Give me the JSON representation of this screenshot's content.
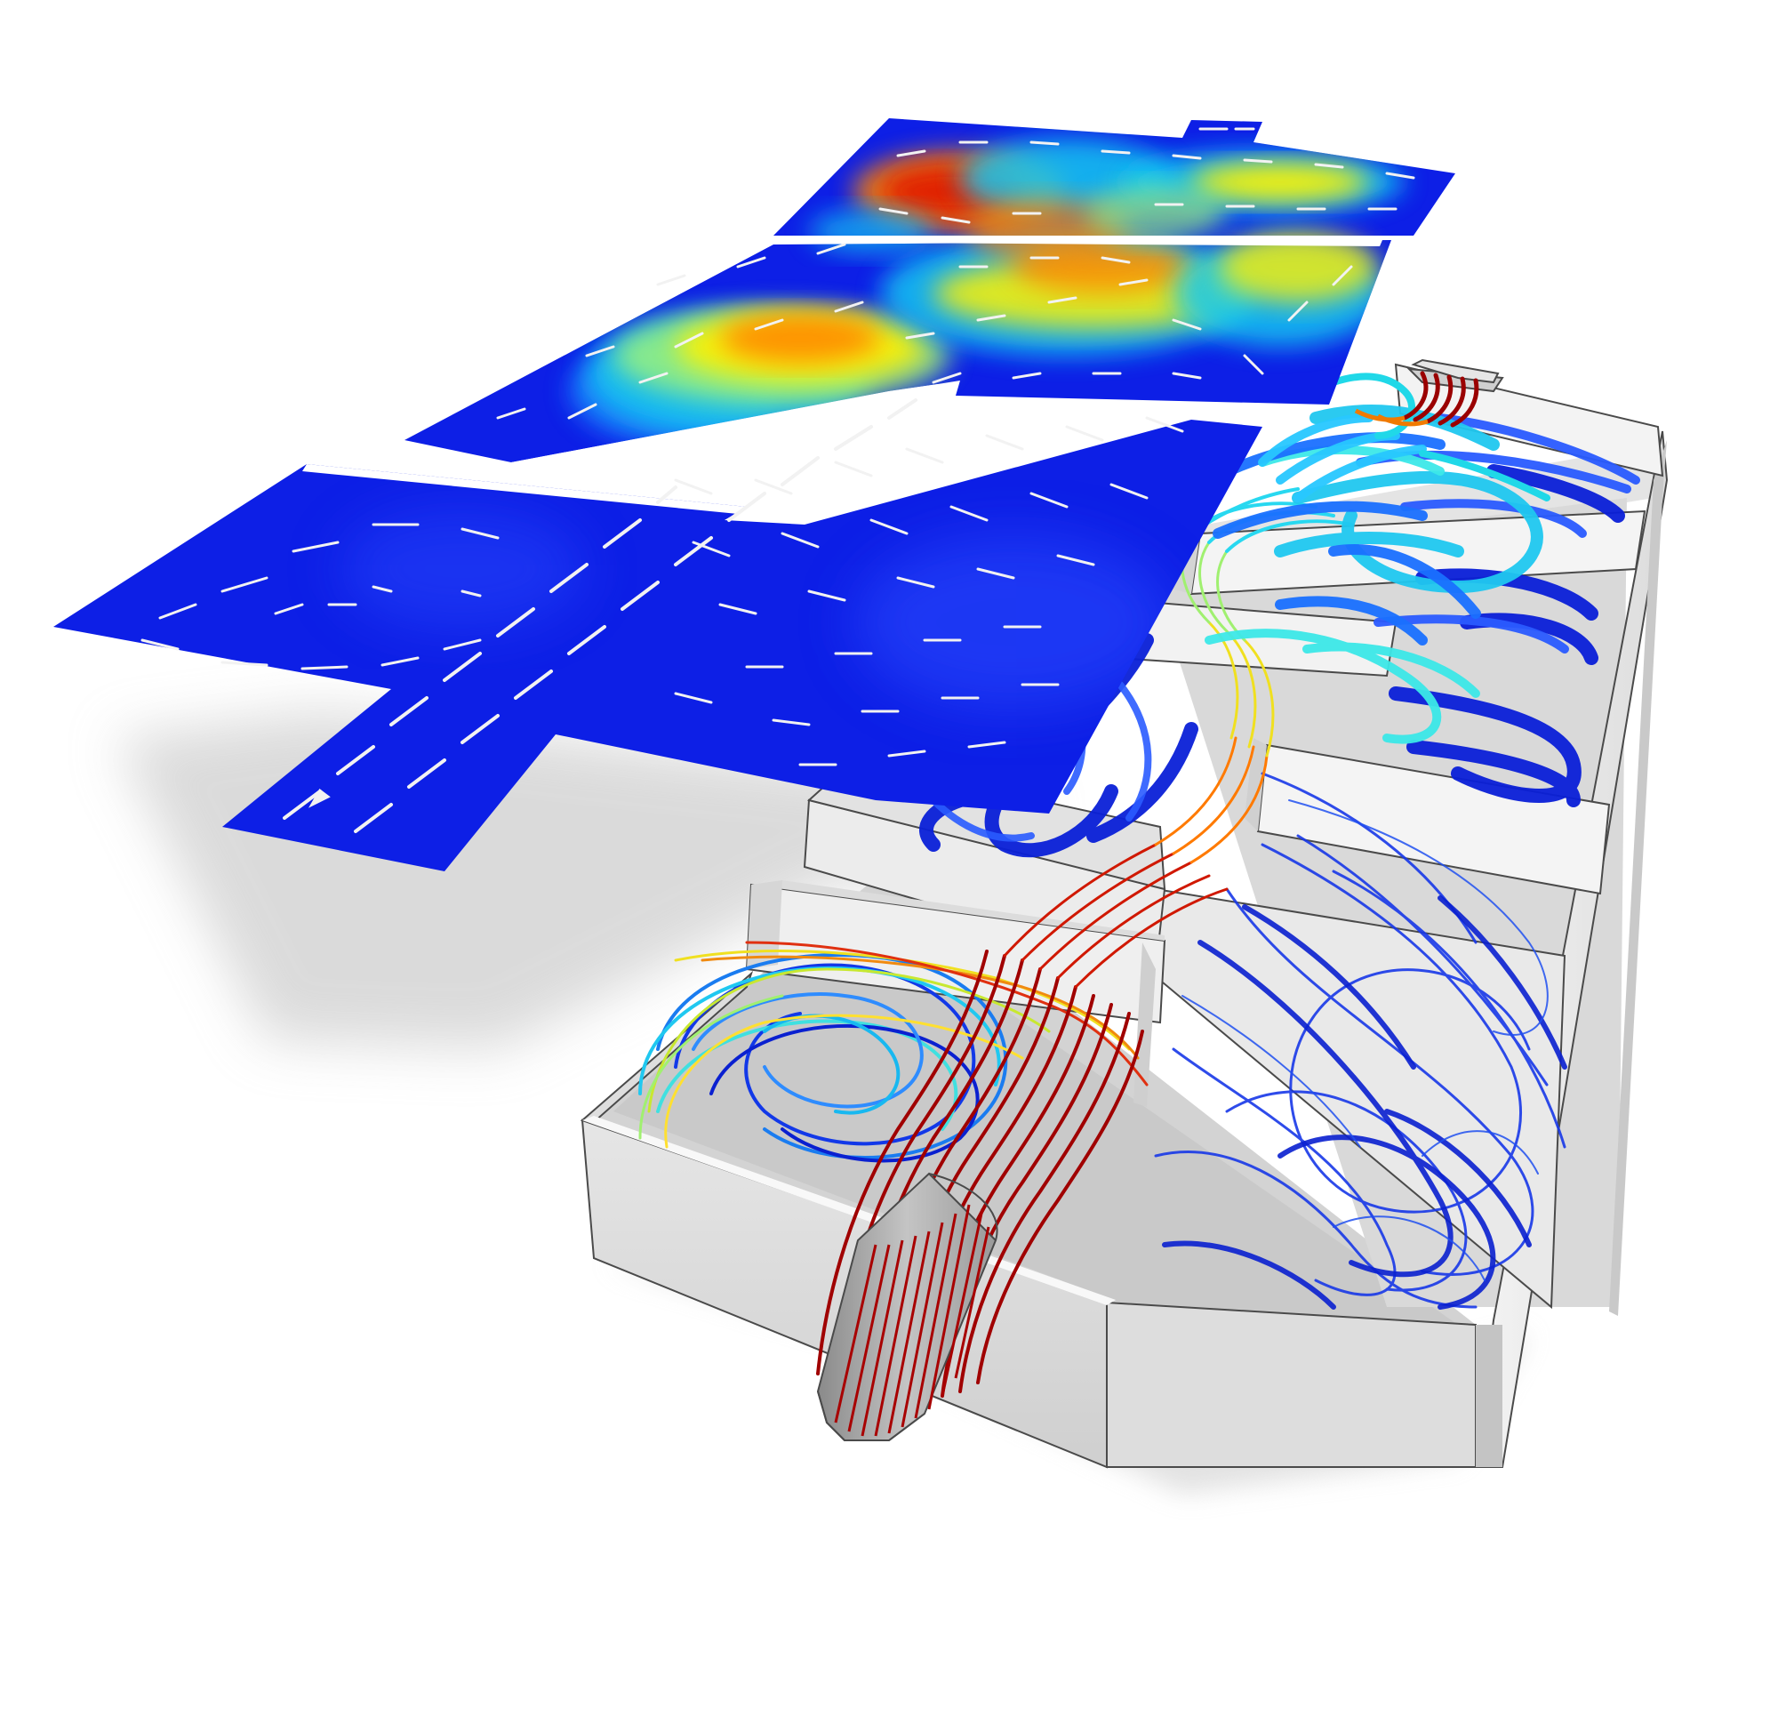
{
  "scene": {
    "background": "#ffffff",
    "colormap": [
      "#0a10c8",
      "#1e5cff",
      "#18c8f0",
      "#9cf27a",
      "#fff200",
      "#ff8a00",
      "#e01a00",
      "#8e0000"
    ],
    "slice_plane": {
      "base_color": "#0d1fe6",
      "arrow_color": "#f2f2f2",
      "shadow_color": "#c8c8c8"
    },
    "tank": {
      "wall_light": "#ececec",
      "wall_mid": "#d8d8d8",
      "wall_dark": "#bdbdbd",
      "edge_color": "#4a4a4a"
    },
    "streamlines": {
      "slow": "#1030e0",
      "medium": "#28d4f0",
      "fast": "#e02000",
      "inlet": "#9a0000"
    }
  }
}
